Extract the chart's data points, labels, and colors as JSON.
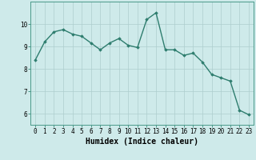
{
  "x": [
    0,
    1,
    2,
    3,
    4,
    5,
    6,
    7,
    8,
    9,
    10,
    11,
    12,
    13,
    14,
    15,
    16,
    17,
    18,
    19,
    20,
    21,
    22,
    23
  ],
  "y": [
    8.4,
    9.2,
    9.65,
    9.75,
    9.55,
    9.45,
    9.15,
    8.85,
    9.15,
    9.35,
    9.05,
    8.95,
    10.2,
    10.5,
    8.85,
    8.85,
    8.6,
    8.7,
    8.3,
    7.75,
    7.6,
    7.45,
    6.15,
    5.95
  ],
  "line_color": "#2e7d6e",
  "marker": "D",
  "markersize": 1.8,
  "linewidth": 1.0,
  "xlabel": "Humidex (Indice chaleur)",
  "xlim": [
    -0.5,
    23.5
  ],
  "ylim": [
    5.5,
    11.0
  ],
  "yticks": [
    6,
    7,
    8,
    9,
    10
  ],
  "xtick_labels": [
    "0",
    "1",
    "2",
    "3",
    "4",
    "5",
    "6",
    "7",
    "8",
    "9",
    "10",
    "11",
    "12",
    "13",
    "14",
    "15",
    "16",
    "17",
    "18",
    "19",
    "20",
    "21",
    "22",
    "23"
  ],
  "bg_color": "#ceeaea",
  "grid_color": "#aecece",
  "tick_fontsize": 5.5,
  "xlabel_fontsize": 7.0,
  "spine_color": "#4a9a8a"
}
